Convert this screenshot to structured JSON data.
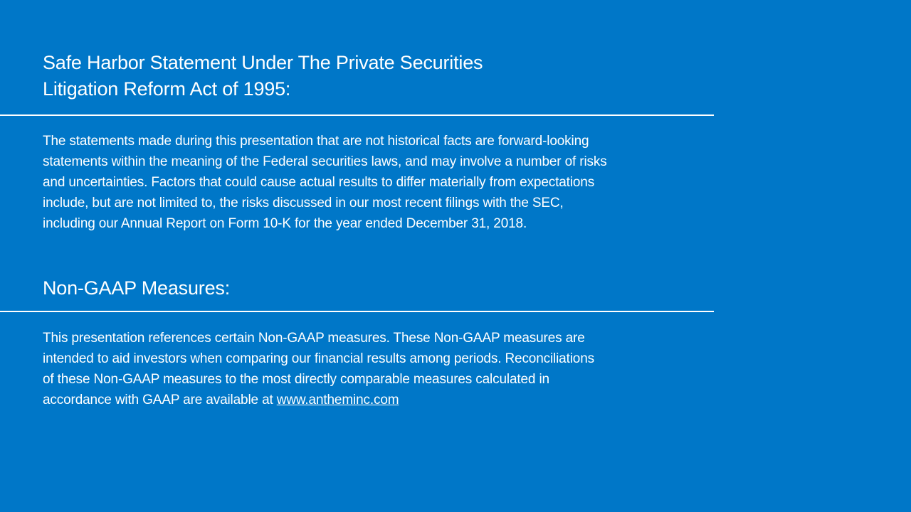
{
  "safe_harbor": {
    "title_lines": [
      "Safe Harbor Statement Under The Private Securities",
      "Litigation Reform Act of 1995:"
    ],
    "body_lines": [
      "The statements made during this presentation that are not historical facts are forward-looking",
      "statements within the meaning of the Federal securities laws, and may involve a number of risks",
      "and uncertainties. Factors that could cause actual results to differ materially from expectations",
      "include, but are not limited to, the risks discussed in our most recent filings with the SEC,",
      "including our Annual Report on Form 10-K for the year ended December 31, 2018."
    ]
  },
  "non_gaap": {
    "title": "Non-GAAP Measures:",
    "body_lines": [
      "This presentation references certain Non-GAAP measures. These Non-GAAP measures are",
      "intended to aid investors when comparing our financial results among periods. Reconciliations",
      "of these Non-GAAP measures to the most directly comparable measures calculated in"
    ],
    "last_line_prefix": "accordance with GAAP are available at ",
    "link_text": "www.antheminc.com"
  },
  "colors": {
    "background": "#0077C8",
    "text": "#FFFFFF"
  }
}
